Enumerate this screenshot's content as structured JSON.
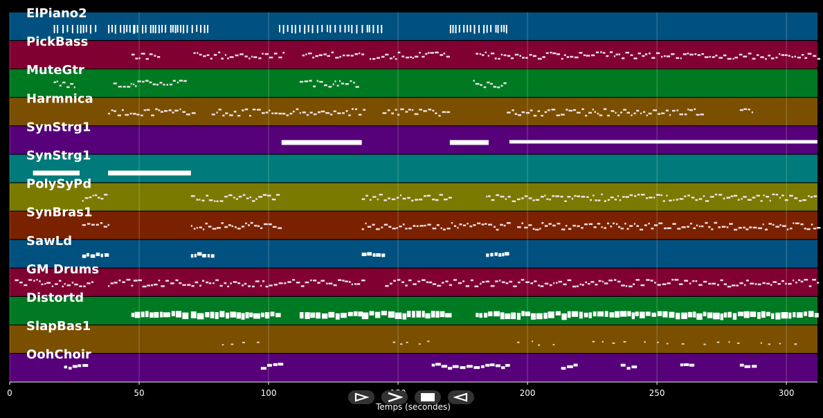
{
  "window": {
    "title": ""
  },
  "tracks": [
    {
      "name": "ElPiano2",
      "color": "#005180"
    },
    {
      "name": "PickBass",
      "color": "#800032"
    },
    {
      "name": "MuteGtr",
      "color": "#007a22"
    },
    {
      "name": "Harmnica",
      "color": "#7a4f00"
    },
    {
      "name": "SynStrg1",
      "color": "#56007a"
    },
    {
      "name": "SynStrg1",
      "color": "#007a7a"
    },
    {
      "name": "PolySyPd",
      "color": "#7a7a00"
    },
    {
      "name": "SynBras1",
      "color": "#7a2200"
    },
    {
      "name": "SawLd",
      "color": "#005180"
    },
    {
      "name": "GM Drums",
      "color": "#800032"
    },
    {
      "name": "Distortd",
      "color": "#007a22"
    },
    {
      "name": "SlapBas1",
      "color": "#7a4f00"
    },
    {
      "name": "OohChoir",
      "color": "#56007a"
    }
  ],
  "chart_data": {
    "type": "piano-roll",
    "xlabel": "Temps (secondes)",
    "xlim": [
      0,
      312
    ],
    "xticks": [
      0,
      50,
      100,
      150,
      200,
      250,
      300
    ],
    "grid": true,
    "segments": [
      [
        [
          17,
          30
        ],
        [
          31,
          34
        ],
        [
          38,
          48
        ],
        [
          48,
          77
        ],
        [
          104,
          144
        ],
        [
          170,
          192
        ]
      ],
      [
        [
          47,
          57
        ],
        [
          71,
          106
        ],
        [
          113,
          136
        ],
        [
          139,
          170
        ],
        [
          180,
          312
        ]
      ],
      [
        [
          17,
          25
        ],
        [
          40,
          68
        ],
        [
          112,
          134
        ],
        [
          179,
          192
        ]
      ],
      [
        [
          38,
          72
        ],
        [
          78,
          137
        ],
        [
          144,
          170
        ],
        [
          192,
          268
        ],
        [
          282,
          287
        ]
      ],
      [
        [
          105,
          136
        ],
        [
          170,
          185
        ],
        [
          193,
          312
        ]
      ],
      [
        [
          9,
          27
        ],
        [
          38,
          70
        ]
      ],
      [
        [
          28,
          38
        ],
        [
          70,
          104
        ],
        [
          136,
          170
        ],
        [
          184,
          312
        ]
      ],
      [
        [
          28,
          38
        ],
        [
          70,
          104
        ],
        [
          136,
          192
        ],
        [
          196,
          312
        ]
      ],
      [
        [
          28,
          38
        ],
        [
          70,
          79
        ],
        [
          136,
          145
        ],
        [
          184,
          193
        ]
      ],
      [
        [
          2,
          32
        ],
        [
          38,
          136
        ],
        [
          145,
          312
        ]
      ],
      [
        [
          47,
          68
        ],
        [
          70,
          104
        ],
        [
          112,
          136
        ],
        [
          136,
          170
        ],
        [
          180,
          312
        ]
      ],
      [
        [
          82,
          98
        ],
        [
          148,
          162
        ],
        [
          196,
          210
        ],
        [
          225,
          240
        ],
        [
          245,
          260
        ],
        [
          268,
          282
        ],
        [
          290,
          304
        ]
      ],
      [
        [
          21,
          30
        ],
        [
          97,
          104
        ],
        [
          163,
          193
        ],
        [
          213,
          218
        ],
        [
          236,
          241
        ],
        [
          259,
          264
        ],
        [
          282,
          287
        ]
      ]
    ]
  },
  "controls": {
    "play": {
      "icon": "play-icon"
    },
    "forward": {
      "icon": "forward-icon"
    },
    "stop": {
      "icon": "stop-icon"
    },
    "rewind": {
      "icon": "rewind-icon"
    }
  }
}
